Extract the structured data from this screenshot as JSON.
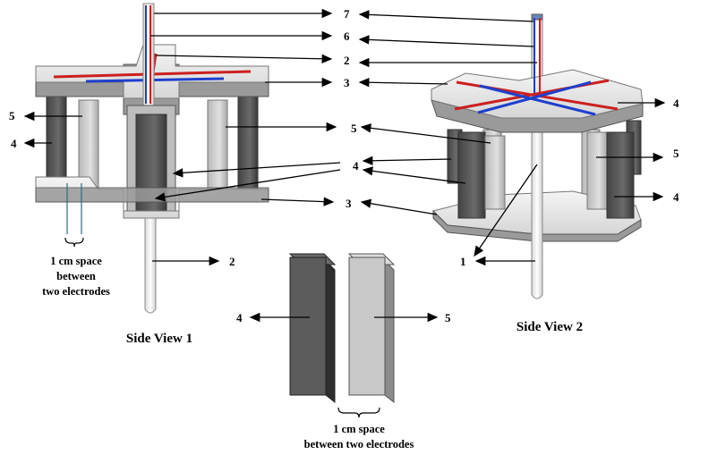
{
  "labels": {
    "n1": "1",
    "n2": "2",
    "n3": "3",
    "n4": "4",
    "n5": "5",
    "n6": "6",
    "n7": "7"
  },
  "captions": {
    "side_view_1": "Side View 1",
    "side_view_2": "Side View 2"
  },
  "notes": {
    "spacing_left": [
      "1 cm space",
      "between",
      "two electrodes"
    ],
    "spacing_bottom": [
      "1 cm space",
      "between two electrodes"
    ]
  },
  "colors": {
    "red_rod": "#cc1f1f",
    "blue_rod": "#1f3fcc",
    "dark_electrode": "#555555",
    "light_electrode": "#c8c8c8",
    "frame": "#e8e8e8",
    "frame_edge": "#8a8a8a"
  }
}
